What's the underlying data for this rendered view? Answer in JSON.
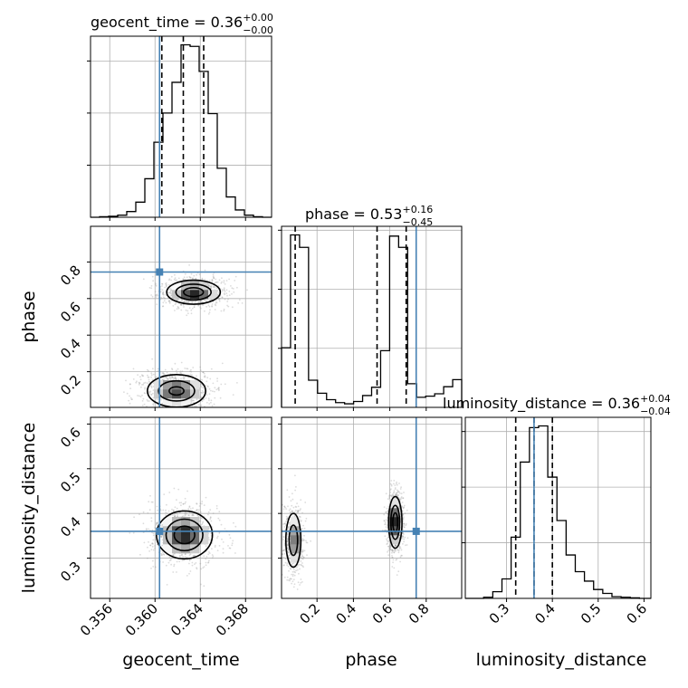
{
  "chart_data": {
    "type": "corner",
    "parameters": [
      "geocent_time",
      "phase",
      "luminosity_distance"
    ],
    "truth": {
      "geocent_time": 0.3604,
      "phase": 0.745,
      "luminosity_distance": 0.36
    },
    "truth_color": "#4682b4",
    "titles": [
      {
        "param": "geocent_time",
        "prefix": "geocent_time = 0.36",
        "sup": "+0.00",
        "sub": "−0.00"
      },
      {
        "param": "phase",
        "prefix": "phase = 0.53",
        "sup": "+0.16",
        "sub": "−0.45"
      },
      {
        "param": "luminosity_distance",
        "prefix": "luminosity_distance = 0.36",
        "sup": "+0.04",
        "sub": "−0.04"
      }
    ],
    "axes": {
      "geocent_time": {
        "range": [
          0.3543,
          0.3703
        ],
        "ticks": [
          0.356,
          0.36,
          0.364,
          0.368
        ],
        "tick_labels": [
          "0.356",
          "0.360",
          "0.364",
          "0.368"
        ]
      },
      "phase": {
        "range": [
          0.005,
          0.995
        ],
        "ticks": [
          0.2,
          0.4,
          0.6,
          0.8
        ],
        "tick_labels": [
          "0.2",
          "0.4",
          "0.6",
          "0.8"
        ]
      },
      "luminosity_distance": {
        "range": [
          0.21,
          0.615
        ],
        "ticks": [
          0.3,
          0.4,
          0.5,
          0.6
        ],
        "tick_labels": [
          "0.3",
          "0.4",
          "0.5",
          "0.6"
        ]
      }
    },
    "histograms": {
      "geocent_time": {
        "bin_edges": [
          0.3543,
          0.3551,
          0.3559,
          0.3567,
          0.3575,
          0.3583,
          0.3591,
          0.3599,
          0.3607,
          0.3615,
          0.3623,
          0.3631,
          0.3639,
          0.3647,
          0.3655,
          0.3663,
          0.3671,
          0.3679,
          0.3687,
          0.3695,
          0.3703
        ],
        "counts": [
          0,
          1,
          2,
          4,
          11,
          29,
          74,
          144,
          200,
          259,
          331,
          328,
          280,
          199,
          94,
          39,
          14,
          4,
          1,
          0
        ],
        "quantiles": [
          0.3606,
          0.3625,
          0.3643
        ]
      },
      "phase": {
        "bin_edges": [
          0.005,
          0.0545,
          0.104,
          0.1535,
          0.203,
          0.2525,
          0.302,
          0.3515,
          0.401,
          0.4505,
          0.5,
          0.5495,
          0.599,
          0.6485,
          0.698,
          0.7475,
          0.797,
          0.8465,
          0.896,
          0.9455,
          0.995
        ],
        "counts": [
          101,
          292,
          271,
          46,
          24,
          13,
          8,
          6,
          10,
          20,
          34,
          96,
          290,
          271,
          40,
          17,
          19,
          23,
          35,
          47
        ],
        "quantiles": [
          0.08,
          0.53,
          0.69
        ]
      },
      "luminosity_distance": {
        "bin_edges": [
          0.21,
          0.23,
          0.25,
          0.27,
          0.29,
          0.31,
          0.33,
          0.35,
          0.37,
          0.39,
          0.41,
          0.43,
          0.45,
          0.47,
          0.49,
          0.51,
          0.53,
          0.55,
          0.57,
          0.59,
          0.615
        ],
        "counts": [
          0,
          0,
          2,
          12,
          35,
          110,
          245,
          307,
          310,
          218,
          140,
          78,
          48,
          31,
          16,
          9,
          3,
          2,
          1,
          0
        ],
        "quantiles": [
          0.32,
          0.36,
          0.4
        ]
      }
    },
    "density_modes": [
      {
        "x": "geocent_time",
        "y": "phase",
        "modes": [
          {
            "cx": 0.3634,
            "cy": 0.635,
            "sx": 0.00115,
            "sy": 0.032,
            "w": 1.0
          },
          {
            "cx": 0.3619,
            "cy": 0.095,
            "sx": 0.0013,
            "sy": 0.045,
            "w": 0.85
          }
        ]
      },
      {
        "x": "geocent_time",
        "y": "luminosity_distance",
        "modes": [
          {
            "cx": 0.3626,
            "cy": 0.352,
            "sx": 0.0012,
            "sy": 0.026,
            "w": 1.0
          }
        ]
      },
      {
        "x": "phase",
        "y": "luminosity_distance",
        "modes": [
          {
            "cx": 0.63,
            "cy": 0.38,
            "sx": 0.018,
            "sy": 0.028,
            "w": 1.0
          },
          {
            "cx": 0.07,
            "cy": 0.34,
            "sx": 0.022,
            "sy": 0.032,
            "w": 0.7
          }
        ]
      }
    ],
    "grid": true
  }
}
